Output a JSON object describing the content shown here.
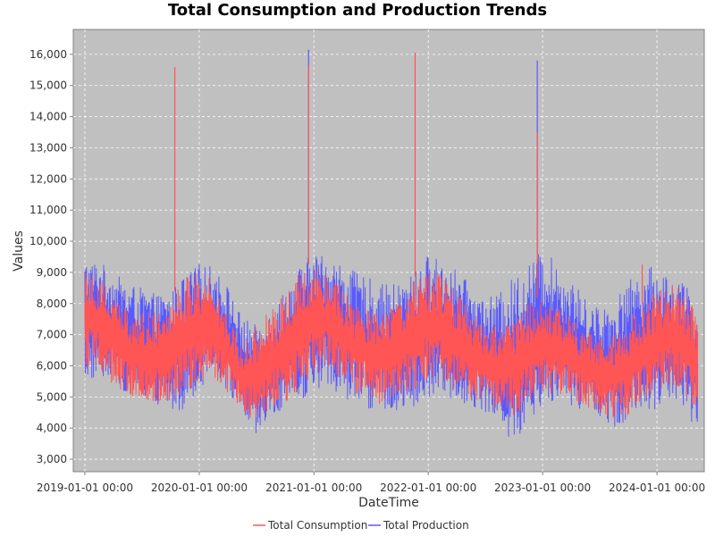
{
  "chart_data": {
    "type": "line",
    "title": "Total Consumption and Production Trends",
    "xlabel": "DateTime",
    "ylabel": "Values",
    "xlim": [
      "2018-11-25",
      "2024-05-31"
    ],
    "ylim": [
      2600,
      16800
    ],
    "yticks": [
      3000,
      4000,
      5000,
      6000,
      7000,
      8000,
      9000,
      10000,
      11000,
      12000,
      13000,
      14000,
      15000,
      16000
    ],
    "ytick_labels": [
      "3,000",
      "4,000",
      "5,000",
      "6,000",
      "7,000",
      "8,000",
      "9,000",
      "10,000",
      "11,000",
      "12,000",
      "13,000",
      "14,000",
      "15,000",
      "16,000"
    ],
    "xticks": [
      "2019-01-01",
      "2020-01-01",
      "2021-01-01",
      "2022-01-01",
      "2023-01-01",
      "2024-01-01"
    ],
    "xtick_labels": [
      "2019-01-01 00:00",
      "2020-01-01 00:00",
      "2021-01-01 00:00",
      "2022-01-01 00:00",
      "2023-01-01 00:00",
      "2024-01-01 00:00"
    ],
    "grid": true,
    "legend_position": "bottom",
    "background": "#c0c0c0",
    "series": [
      {
        "name": "Total Production",
        "color": "#5a5aff",
        "x": [
          "2019-01-01",
          "2019-02-15",
          "2019-04-01",
          "2019-05-15",
          "2019-07-01",
          "2019-08-15",
          "2019-10-01",
          "2019-11-15",
          "2020-01-01",
          "2020-02-15",
          "2020-04-01",
          "2020-05-15",
          "2020-07-01",
          "2020-08-15",
          "2020-10-01",
          "2020-11-15",
          "2021-01-01",
          "2021-02-15",
          "2021-04-01",
          "2021-05-15",
          "2021-07-01",
          "2021-08-15",
          "2021-10-01",
          "2021-11-15",
          "2022-01-01",
          "2022-02-15",
          "2022-04-01",
          "2022-05-15",
          "2022-07-01",
          "2022-08-15",
          "2022-10-01",
          "2022-11-15",
          "2023-01-01",
          "2023-02-15",
          "2023-04-01",
          "2023-05-15",
          "2023-07-01",
          "2023-08-15",
          "2023-10-01",
          "2023-11-15",
          "2024-01-01",
          "2024-02-15",
          "2024-04-01",
          "2024-05-10"
        ],
        "min": [
          5400,
          5600,
          5500,
          5100,
          4900,
          4700,
          4500,
          4600,
          5300,
          5600,
          5200,
          4300,
          3600,
          4200,
          4500,
          4800,
          5100,
          5300,
          5000,
          4800,
          4600,
          4400,
          4400,
          4600,
          4800,
          5000,
          4900,
          4700,
          4500,
          4200,
          3300,
          4300,
          4600,
          4900,
          4700,
          4500,
          4400,
          4000,
          4200,
          4300,
          4600,
          4800,
          4700,
          3700
        ],
        "max": [
          9500,
          9400,
          9000,
          8700,
          8500,
          8300,
          8400,
          8900,
          9300,
          9200,
          8600,
          7600,
          7300,
          7800,
          8500,
          9200,
          9700,
          9600,
          9300,
          9000,
          8800,
          8600,
          8700,
          9000,
          9600,
          9400,
          9100,
          8600,
          8200,
          8300,
          8900,
          9300,
          9800,
          9300,
          8800,
          8200,
          7900,
          8100,
          8700,
          9200,
          9200,
          8900,
          8700,
          7400
        ],
        "spikes": [
          {
            "x": "2020-12-15",
            "y": 16150
          },
          {
            "x": "2022-12-15",
            "y": 15800
          }
        ]
      },
      {
        "name": "Total Consumption",
        "color": "#ff5555",
        "x": [
          "2019-01-01",
          "2019-02-15",
          "2019-04-01",
          "2019-05-15",
          "2019-07-01",
          "2019-08-15",
          "2019-10-01",
          "2019-11-15",
          "2020-01-01",
          "2020-02-15",
          "2020-04-01",
          "2020-05-15",
          "2020-07-01",
          "2020-08-15",
          "2020-10-01",
          "2020-11-15",
          "2021-01-01",
          "2021-02-15",
          "2021-04-01",
          "2021-05-15",
          "2021-07-01",
          "2021-08-15",
          "2021-10-01",
          "2021-11-15",
          "2022-01-01",
          "2022-02-15",
          "2022-04-01",
          "2022-05-15",
          "2022-07-01",
          "2022-08-15",
          "2022-10-01",
          "2022-11-15",
          "2023-01-01",
          "2023-02-15",
          "2023-04-01",
          "2023-05-15",
          "2023-07-01",
          "2023-08-15",
          "2023-10-01",
          "2023-11-15",
          "2024-01-01",
          "2024-02-15",
          "2024-04-01",
          "2024-05-10"
        ],
        "min": [
          5900,
          5800,
          5400,
          5000,
          4800,
          4800,
          4900,
          5100,
          5500,
          5600,
          5000,
          4400,
          4200,
          4500,
          4800,
          5200,
          5600,
          5700,
          5400,
          5100,
          4900,
          4700,
          4800,
          5100,
          5500,
          5500,
          5200,
          4900,
          4700,
          4500,
          4400,
          4700,
          5000,
          5100,
          4900,
          4700,
          4500,
          4300,
          4400,
          4700,
          5000,
          5200,
          5000,
          4600
        ],
        "max": [
          9300,
          9000,
          8300,
          7900,
          7700,
          7800,
          8200,
          8800,
          9000,
          8800,
          7800,
          6800,
          7300,
          7800,
          8300,
          9000,
          9400,
          9200,
          8600,
          8000,
          7800,
          7700,
          8200,
          8800,
          9200,
          8900,
          8400,
          7800,
          7400,
          7300,
          7600,
          8000,
          8300,
          8000,
          7600,
          7200,
          7000,
          7100,
          7500,
          8000,
          8500,
          8700,
          8300,
          7700
        ],
        "spikes": [
          {
            "x": "2019-10-15",
            "y": 15600
          },
          {
            "x": "2020-12-15",
            "y": 15650
          },
          {
            "x": "2021-11-20",
            "y": 16050
          },
          {
            "x": "2022-12-15",
            "y": 13500
          },
          {
            "x": "2023-11-15",
            "y": 9250
          }
        ]
      }
    ]
  }
}
